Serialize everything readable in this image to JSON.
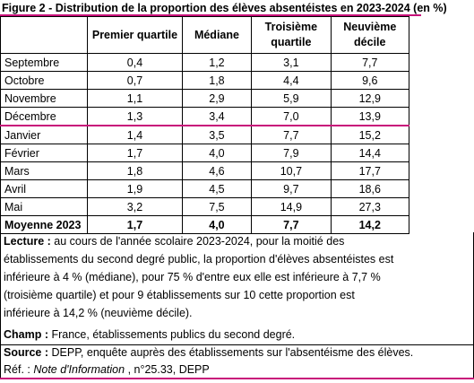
{
  "header": {
    "title": "Figure 2 - Distribution de la proportion des élèves absentéistes en 2023-2024 (en %)"
  },
  "table": {
    "columns": [
      "Premier quartile",
      "Médiane",
      [
        "Troisième",
        "quartile"
      ],
      [
        "Neuvième",
        "décile"
      ]
    ],
    "rows": [
      [
        "Septembre",
        "0,4",
        "1,2",
        "3,1",
        "7,7"
      ],
      [
        "Octobre",
        "0,7",
        "1,8",
        "4,4",
        "9,6"
      ],
      [
        "Novembre",
        "1,1",
        "2,9",
        "5,9",
        "12,9"
      ],
      [
        "Décembre",
        "1,3",
        "3,4",
        "7,0",
        "13,9"
      ],
      [
        "Janvier",
        "1,4",
        "3,5",
        "7,7",
        "15,2"
      ],
      [
        "Février",
        "1,7",
        "4,0",
        "7,9",
        "14,4"
      ],
      [
        "Mars",
        "1,8",
        "4,6",
        "10,7",
        "17,7"
      ],
      [
        "Avril",
        "1,9",
        "4,5",
        "9,7",
        "18,6"
      ],
      [
        "Mai",
        "3,2",
        "7,5",
        "14,9",
        "27,3"
      ]
    ],
    "total": [
      "Moyenne 2023",
      "1,7",
      "4,0",
      "7,7",
      "14,2"
    ]
  },
  "notes": {
    "lecture": {
      "label": "Lecture :",
      "lines": [
        " au cours de l'année scolaire 2023-2024, pour la moitié des",
        "établissements du second degré public, la proportion d'élèves absentéistes est",
        "inférieure à 4 % (médiane), pour 75 % d'entre eux elle est inférieure à 7,7 %",
        "(troisième quartile) et pour 9 établissements sur 10 cette proportion est",
        "inférieure à 14,2 % (neuvième décile)."
      ]
    },
    "champ": {
      "label": "Champ :",
      "text": " France, établissements publics du second degré."
    },
    "source": {
      "label": "Source :",
      "text": " DEPP, enquête auprès des établissements sur l'absentéisme des élèves."
    },
    "ref": {
      "prefix": "Réf. : ",
      "italic": "Note d'Information",
      "suffix": " , n°25.33, DEPP"
    }
  }
}
